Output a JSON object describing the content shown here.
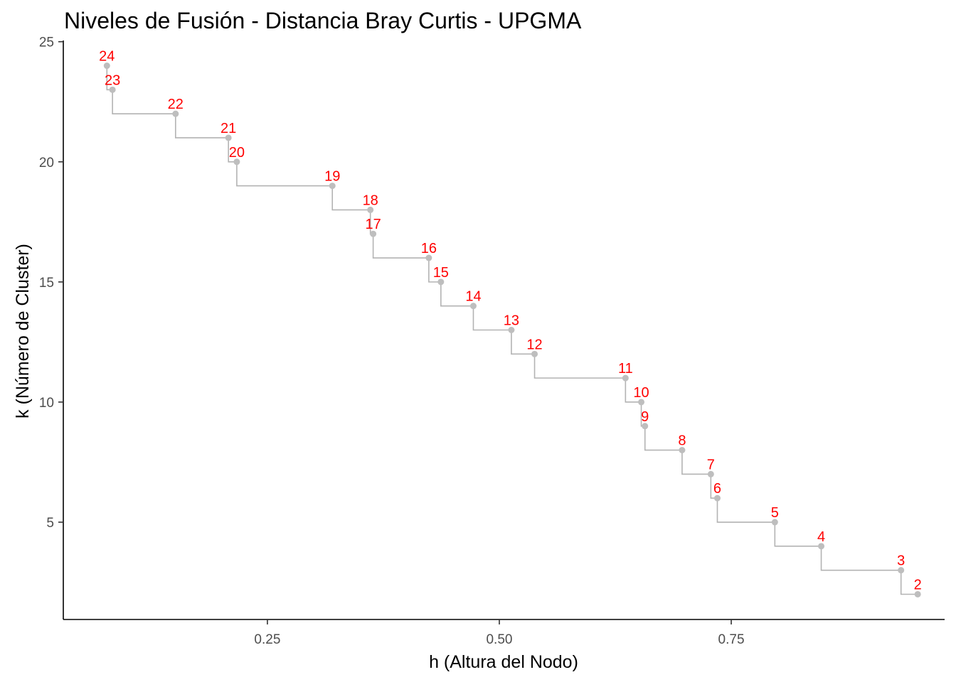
{
  "chart_data": {
    "type": "line",
    "title": "Niveles de Fusión - Distancia Bray Curtis - UPGMA",
    "xlabel": "h (Altura del Nodo)",
    "ylabel": "k (Número de Cluster)",
    "xlim": [
      0.03,
      0.98
    ],
    "ylim": [
      0.95,
      25.05
    ],
    "xticks": [
      0.25,
      0.5,
      0.75
    ],
    "xtick_labels": [
      "0.25",
      "0.50",
      "0.75"
    ],
    "yticks": [
      5,
      10,
      15,
      20,
      25
    ],
    "ytick_labels": [
      "5",
      "10",
      "15",
      "20",
      "25"
    ],
    "grid": false,
    "step_color": "#b3b3b3",
    "point_color": "#bebebe",
    "label_color": "#ff0000",
    "points": [
      {
        "h": 0.077,
        "k": 24,
        "label": "24"
      },
      {
        "h": 0.083,
        "k": 23,
        "label": "23"
      },
      {
        "h": 0.151,
        "k": 22,
        "label": "22"
      },
      {
        "h": 0.208,
        "k": 21,
        "label": "21"
      },
      {
        "h": 0.217,
        "k": 20,
        "label": "20"
      },
      {
        "h": 0.32,
        "k": 19,
        "label": "19"
      },
      {
        "h": 0.361,
        "k": 18,
        "label": "18"
      },
      {
        "h": 0.364,
        "k": 17,
        "label": "17"
      },
      {
        "h": 0.424,
        "k": 16,
        "label": "16"
      },
      {
        "h": 0.437,
        "k": 15,
        "label": "15"
      },
      {
        "h": 0.472,
        "k": 14,
        "label": "14"
      },
      {
        "h": 0.513,
        "k": 13,
        "label": "13"
      },
      {
        "h": 0.538,
        "k": 12,
        "label": "12"
      },
      {
        "h": 0.636,
        "k": 11,
        "label": "11"
      },
      {
        "h": 0.653,
        "k": 10,
        "label": "10"
      },
      {
        "h": 0.657,
        "k": 9,
        "label": "9"
      },
      {
        "h": 0.697,
        "k": 8,
        "label": "8"
      },
      {
        "h": 0.728,
        "k": 7,
        "label": "7"
      },
      {
        "h": 0.735,
        "k": 6,
        "label": "6"
      },
      {
        "h": 0.797,
        "k": 5,
        "label": "5"
      },
      {
        "h": 0.847,
        "k": 4,
        "label": "4"
      },
      {
        "h": 0.933,
        "k": 3,
        "label": "3"
      },
      {
        "h": 0.951,
        "k": 2,
        "label": "2"
      }
    ]
  }
}
